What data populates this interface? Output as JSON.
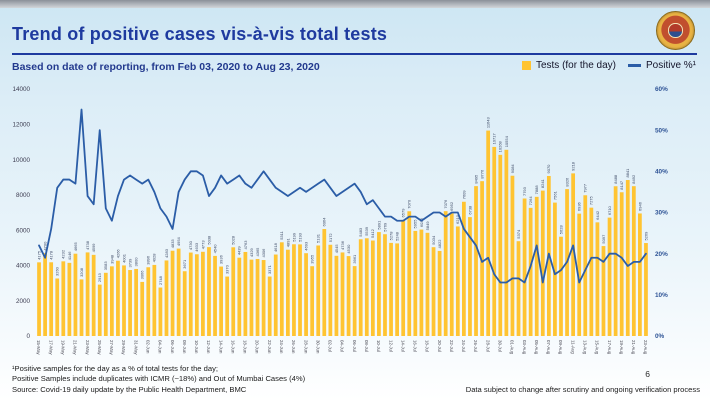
{
  "header": {
    "title": "Trend of positive cases vis-à-vis total tests",
    "subtitle": "Based on date of reporting, from Feb 03, 2020 to Aug 23, 2020",
    "logo": "bmc-municipal-emblem"
  },
  "legend": {
    "bars_label": "Tests (for the day)",
    "line_label": "Positive %¹"
  },
  "colors": {
    "bar": "#FFC432",
    "line": "#2B5DA7",
    "title_accent": "#1e3a9f",
    "left_axis_text": "#3c3c50",
    "right_axis_text": "#2F5496"
  },
  "chart_data": {
    "type": "bar+line",
    "title": "Trend of positive cases vis-à-vis total tests",
    "grid": false,
    "legend_position": "top-right",
    "x_label_every": 2,
    "bar_value_labels": true,
    "categories": [
      "15-May",
      "16-May",
      "17-May",
      "18-May",
      "19-May",
      "20-May",
      "21-May",
      "22-May",
      "23-May",
      "24-May",
      "25-May",
      "26-May",
      "27-May",
      "28-May",
      "29-May",
      "30-May",
      "31-May",
      "01-Jun",
      "02-Jun",
      "03-Jun",
      "04-Jun",
      "05-Jun",
      "06-Jun",
      "07-Jun",
      "08-Jun",
      "09-Jun",
      "10-Jun",
      "11-Jun",
      "12-Jun",
      "13-Jun",
      "14-Jun",
      "15-Jun",
      "16-Jun",
      "17-Jun",
      "18-Jun",
      "19-Jun",
      "20-Jun",
      "21-Jun",
      "22-Jun",
      "23-Jun",
      "24-Jun",
      "25-Jun",
      "26-Jun",
      "27-Jun",
      "28-Jun",
      "29-Jun",
      "30-Jun",
      "01-Jul",
      "02-Jul",
      "03-Jul",
      "04-Jul",
      "05-Jul",
      "06-Jul",
      "07-Jul",
      "08-Jul",
      "09-Jul",
      "10-Jul",
      "11-Jul",
      "12-Jul",
      "13-Jul",
      "14-Jul",
      "15-Jul",
      "16-Jul",
      "17-Jul",
      "18-Jul",
      "19-Jul",
      "20-Jul",
      "21-Jul",
      "22-Jul",
      "23-Jul",
      "24-Jul",
      "25-Jul",
      "26-Jul",
      "27-Jul",
      "28-Jul",
      "29-Jul",
      "30-Jul",
      "31-Jul",
      "01-Aug",
      "02-Aug",
      "03-Aug",
      "04-Aug",
      "05-Aug",
      "06-Aug",
      "07-Aug",
      "08-Aug",
      "09-Aug",
      "10-Aug",
      "11-Aug",
      "12-Aug",
      "13-Aug",
      "14-Aug",
      "15-Aug",
      "16-Aug",
      "17-Aug",
      "18-Aug",
      "19-Aug",
      "20-Aug",
      "21-Aug",
      "22-Aug",
      "23-Aug"
    ],
    "series": [
      {
        "name": "Tests (for the day)",
        "type": "bar",
        "axis": "left",
        "color": "#FFC432",
        "values": [
          4175,
          4700,
          4178,
          3260,
          4232,
          4146,
          4665,
          3208,
          4738,
          4599,
          2913,
          3583,
          3948,
          4266,
          4001,
          3739,
          3800,
          3066,
          3896,
          4028,
          2748,
          4283,
          4833,
          4954,
          3671,
          4730,
          4633,
          4773,
          5038,
          4540,
          3936,
          3370,
          5028,
          4439,
          4763,
          4329,
          4365,
          4306,
          3371,
          4618,
          5311,
          4891,
          5199,
          5193,
          4693,
          3955,
          5131,
          6064,
          5172,
          4545,
          4736,
          4530,
          3961,
          5483,
          5539,
          5412,
          5891,
          5769,
          5278,
          5248,
          6579,
          7070,
          5955,
          6033,
          5849,
          5034,
          4822,
          7076,
          6952,
          6210,
          7609,
          6738,
          8495,
          8776,
          11643,
          10717,
          10268,
          10554,
          9084,
          5374,
          7793,
          7264,
          7888,
          8241,
          9070,
          7561,
          5628,
          8326,
          9218,
          6936,
          7977,
          7275,
          6442,
          5097,
          6710,
          8488,
          8147,
          8841,
          8492,
          6946,
          5269
        ]
      },
      {
        "name": "Positive %",
        "type": "line",
        "axis": "right",
        "color": "#2B5DA7",
        "values": [
          22,
          19,
          26,
          36,
          38,
          38,
          37,
          55,
          34,
          32,
          50,
          31,
          28,
          34,
          38,
          39,
          38,
          37,
          38,
          35,
          31,
          29,
          26,
          35,
          38,
          40,
          40,
          39,
          34,
          36,
          39,
          37,
          38,
          39,
          37,
          36,
          38,
          40,
          38,
          36,
          35,
          34,
          35,
          36,
          35,
          36,
          37,
          38,
          36,
          34,
          35,
          36,
          37,
          35,
          32,
          33,
          31,
          29,
          29,
          28,
          28,
          29,
          29,
          28,
          29,
          30,
          30,
          29,
          30,
          30,
          26,
          24,
          22,
          18,
          19,
          15,
          13,
          13,
          14,
          14,
          13,
          17,
          22,
          13,
          20,
          15,
          16,
          18,
          22,
          13,
          16,
          19,
          19,
          18,
          20,
          20,
          19,
          17,
          18,
          18,
          20
        ]
      }
    ],
    "left_axis": {
      "min": 0,
      "max": 14000,
      "ticks": [
        0,
        2000,
        4000,
        6000,
        8000,
        10000,
        12000,
        14000
      ],
      "labels": [
        "0",
        "2000",
        "4000",
        "6000",
        "8000",
        "10000",
        "12000",
        "14000"
      ]
    },
    "right_axis": {
      "min": 0,
      "max": 60,
      "ticks": [
        0,
        10,
        20,
        30,
        40,
        50,
        60
      ],
      "labels": [
        "0%",
        "10%",
        "20%",
        "30%",
        "40%",
        "50%",
        "60%"
      ]
    }
  },
  "footnotes": [
    "¹Positive samples for the day as a % of total tests for the day;",
    "Positive Samples include duplicates with ICMR (~18%) and Out of Mumbai Cases (4%)",
    "Source: Covid-19 daily update by the Public Health Department, BMC"
  ],
  "footer_right": {
    "page_number": "6",
    "disclaimer": "Data subject to change after scrutiny and ongoing verification process"
  }
}
